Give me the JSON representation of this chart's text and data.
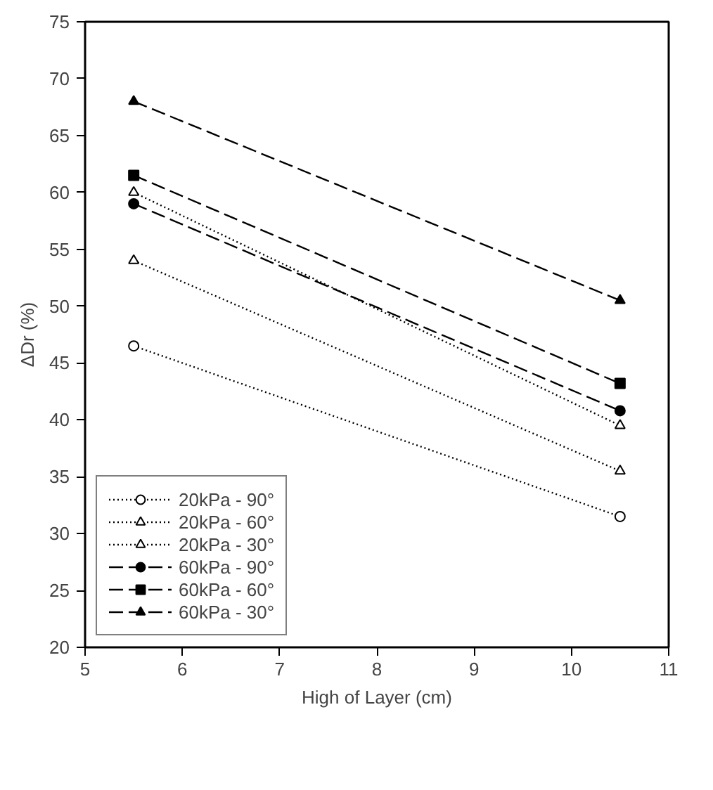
{
  "chart_data": {
    "type": "line",
    "xlabel": "High of Layer (cm)",
    "ylabel": "ΔDr (%)",
    "x": [
      5.5,
      10.5
    ],
    "xlim": [
      5,
      11
    ],
    "xticks": [
      5,
      6,
      7,
      8,
      9,
      10,
      11
    ],
    "ylim": [
      20,
      75
    ],
    "yticks": [
      20,
      25,
      30,
      35,
      40,
      45,
      50,
      55,
      60,
      65,
      70,
      75
    ],
    "grid": false,
    "legend": "bottom left",
    "series": [
      {
        "name": "20kPa - 90°",
        "color": "#000000",
        "values": [
          46.5,
          31.5
        ],
        "marker": "circle",
        "line_style": "dotted"
      },
      {
        "name": "20kPa - 60°",
        "color": "#000000",
        "values": [
          54,
          35.5
        ],
        "marker": "triangle",
        "line_style": "dotted"
      },
      {
        "name": "20kPa - 30°",
        "color": "#000000",
        "values": [
          60,
          39.5
        ],
        "marker": "triangle",
        "line_style": "dotted"
      },
      {
        "name": "60kPa - 90°",
        "color": "#000000",
        "values": [
          59,
          40.8
        ],
        "marker": "circle",
        "line_style": "dashed"
      },
      {
        "name": "60kPa - 60°",
        "color": "#000000",
        "values": [
          61.5,
          43.2
        ],
        "marker": "square",
        "line_style": "dashed"
      },
      {
        "name": "60kPa - 30°",
        "color": "#000000",
        "values": [
          68,
          50.5
        ],
        "marker": "triangle",
        "line_style": "dashed"
      }
    ]
  }
}
